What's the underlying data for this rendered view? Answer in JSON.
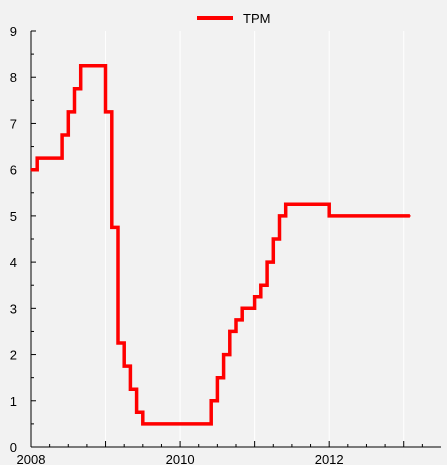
{
  "chart_data": {
    "type": "line",
    "title": "",
    "xlabel": "",
    "ylabel": "",
    "xlim": [
      2008,
      2013.5
    ],
    "ylim": [
      0,
      9
    ],
    "x_ticks": [
      "2008",
      "2010",
      "2012"
    ],
    "y_ticks": [
      "0",
      "1",
      "2",
      "3",
      "4",
      "5",
      "6",
      "7",
      "8",
      "9"
    ],
    "grid": "vertical",
    "legend_placement": "top-center",
    "series": [
      {
        "name": "TPM",
        "color": "#ff0000",
        "step": true,
        "x": [
          "2008-01",
          "2008-02",
          "2008-06",
          "2008-07",
          "2008-08",
          "2008-09",
          "2008-10",
          "2009-01",
          "2009-02",
          "2009-03",
          "2009-04",
          "2009-05",
          "2009-06",
          "2009-07",
          "2010-06",
          "2010-07",
          "2010-08",
          "2010-09",
          "2010-10",
          "2010-11",
          "2011-01",
          "2011-02",
          "2011-03",
          "2011-04",
          "2011-05",
          "2011-06",
          "2012-01",
          "2013-02"
        ],
        "values": [
          6.0,
          6.25,
          6.75,
          7.25,
          7.75,
          8.25,
          8.25,
          7.25,
          4.75,
          2.25,
          1.75,
          1.25,
          0.75,
          0.5,
          1.0,
          1.5,
          2.0,
          2.5,
          2.75,
          3.0,
          3.25,
          3.5,
          4.0,
          4.5,
          5.0,
          5.25,
          5.0,
          5.0
        ]
      }
    ]
  }
}
